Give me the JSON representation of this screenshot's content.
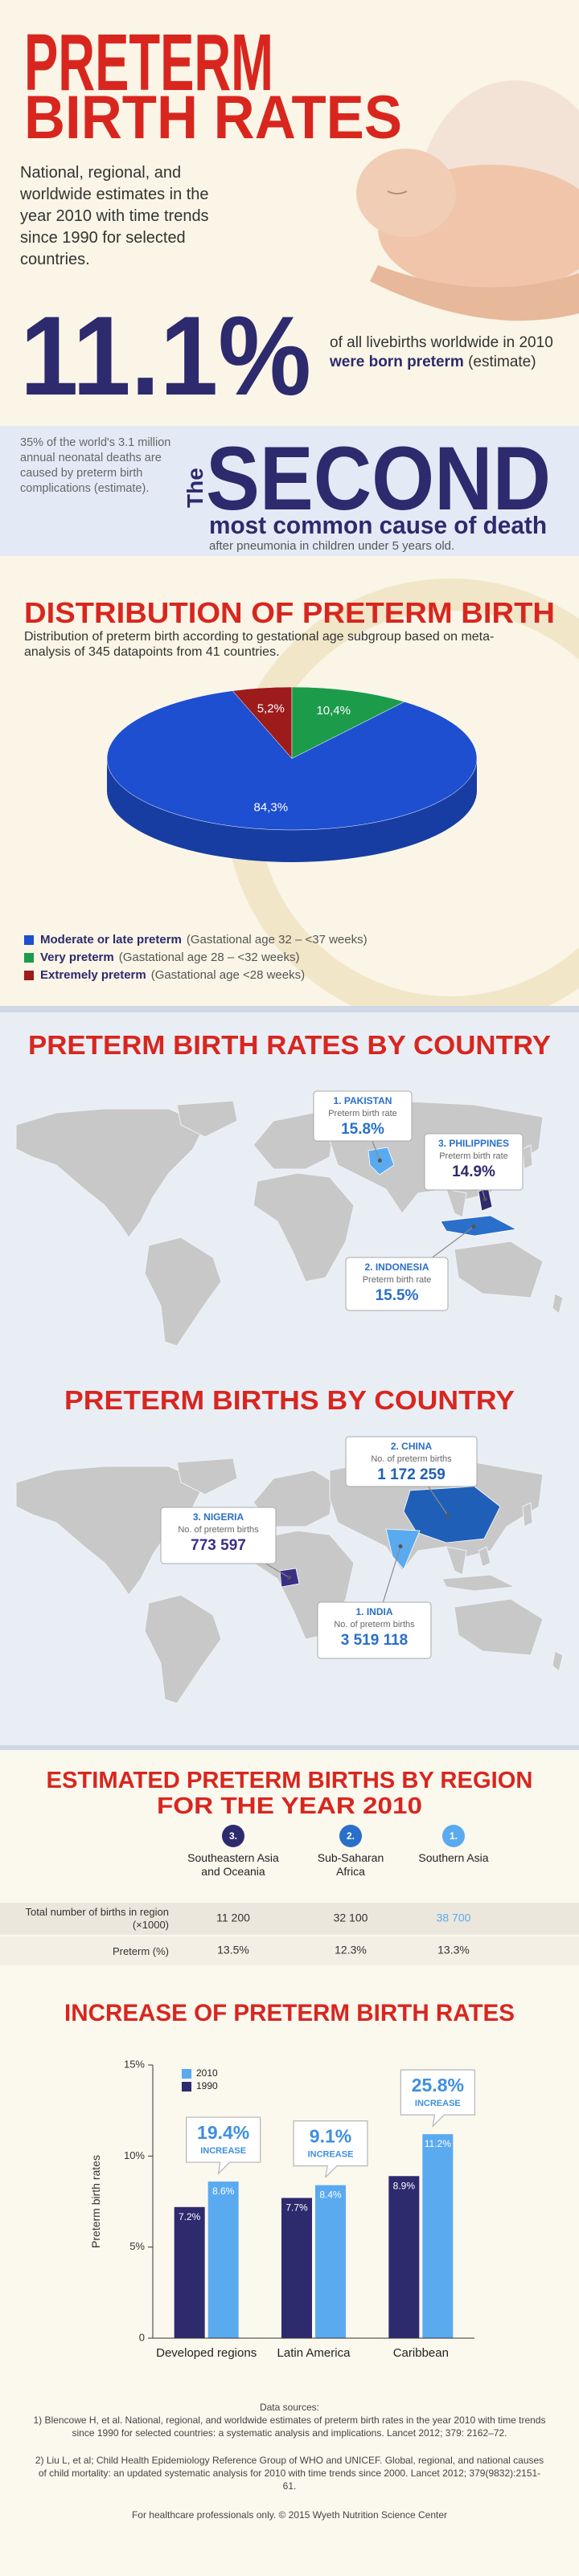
{
  "header": {
    "title_line1": "PRETERM",
    "title_line2": "BIRTH RATES",
    "subtitle": "National, regional, and worldwide estimates in the year 2010 with time trends since 1990 for selected countries."
  },
  "headline_stat": {
    "value": "11.1%",
    "text": "of all livebirths worldwide in 2010",
    "emphasis": "were born preterm",
    "note": "(estimate)"
  },
  "second_cause": {
    "left_text": "35% of the world's 3.1 million annual neonatal deaths are caused by preterm birth complications (estimate).",
    "prefix": "The",
    "big": "SECOND",
    "subtitle": "most common cause of death",
    "note": "after pneumonia in children under 5 years old."
  },
  "chart_data": [
    {
      "type": "pie",
      "title": "DISTRIBUTION OF PRETERM BIRTH",
      "subtitle": "Distribution of preterm birth according to gestational age subgroup based on meta-analysis of 345 datapoints from 41 countries.",
      "categories": [
        "Moderate or late preterm",
        "Very preterm",
        "Extremely preterm"
      ],
      "notes": [
        "(Gastational age 32 – <37 weeks)",
        "(Gastational age 28 – <32 weeks)",
        "(Gastational age <28 weeks)"
      ],
      "values": [
        84.3,
        10.4,
        5.2
      ],
      "value_labels": [
        "84,3%",
        "10,4%",
        "5,2%"
      ],
      "colors": [
        "#1e4fd0",
        "#1c9b4b",
        "#9e1b1b"
      ]
    },
    {
      "type": "bar",
      "title": "INCREASE OF PRETERM BIRTH RATES",
      "ylabel": "Preterm birth rates",
      "categories": [
        "Developed regions",
        "Latin America",
        "Caribbean"
      ],
      "series": [
        {
          "name": "1990",
          "color": "#2d2a6e",
          "values": [
            7.2,
            7.7,
            8.9
          ],
          "value_labels": [
            "7.2%",
            "7.7%",
            "8.9%"
          ]
        },
        {
          "name": "2010",
          "color": "#5aaaf0",
          "values": [
            8.6,
            8.4,
            11.2
          ],
          "value_labels": [
            "8.6%",
            "8.4%",
            "11.2%"
          ]
        }
      ],
      "ylim": [
        0,
        15
      ],
      "yticks": [
        0,
        {
          "value": 5,
          "label": "5%"
        },
        {
          "value": 10,
          "label": "10%"
        },
        {
          "value": 15,
          "label": "15%"
        }
      ],
      "increase_labels": [
        "19.4%",
        "9.1%",
        "25.8%"
      ],
      "increase_text": "INCREASE"
    }
  ],
  "maps": [
    {
      "title": "PRETERM BIRTH RATES BY COUNTRY",
      "callouts": [
        {
          "name": "1. PAKISTAN",
          "label": "Preterm birth rate",
          "value": "15.8%"
        },
        {
          "name": "3. PHILIPPINES",
          "label": "Preterm birth rate",
          "value": "14.9%"
        },
        {
          "name": "2. INDONESIA",
          "label": "Preterm birth rate",
          "value": "15.5%"
        }
      ]
    },
    {
      "title": "PRETERM BIRTHS BY COUNTRY",
      "callouts": [
        {
          "name": "2. CHINA",
          "label": "No. of preterm births",
          "value": "1 172 259"
        },
        {
          "name": "3. NIGERIA",
          "label": "No. of preterm births",
          "value": "773 597"
        },
        {
          "name": "1. INDIA",
          "label": "No. of preterm births",
          "value": "3 519 118"
        }
      ]
    }
  ],
  "table": {
    "title_line1": "ESTIMATED PRETERM BIRTHS BY REGION",
    "title_line2": "FOR THE YEAR 2010",
    "columns": [
      {
        "rank": "3.",
        "name": "Southeastern Asia and Oceania"
      },
      {
        "rank": "2.",
        "name": "Sub-Saharan Africa"
      },
      {
        "rank": "1.",
        "name": "Southern Asia"
      }
    ],
    "rows": [
      {
        "label": "Total number of births in region (×1000)",
        "cells": [
          "11 200",
          "32 100",
          "38 700"
        ]
      },
      {
        "label": "Preterm (%)",
        "cells": [
          "13.5%",
          "12.3%",
          "13.3%"
        ]
      }
    ]
  },
  "sources": {
    "heading": "Data sources:",
    "items": [
      "1) Blencowe H, et al. National, regional, and worldwide estimates of preterm birth rates in the year 2010 with time trends since 1990 for selected countries: a systematic analysis and implications. Lancet 2012; 379: 2162–72.",
      "2) Liu L, et al; Child Health Epidemiology Reference Group of WHO and UNICEF. Global, regional, and national causes of child mortality: an updated systematic analysis for 2010 with time trends since 2000. Lancet 2012; 379(9832):2151-61."
    ],
    "footer": "For healthcare professionals only. © 2015 Wyeth Nutrition Science Center"
  }
}
